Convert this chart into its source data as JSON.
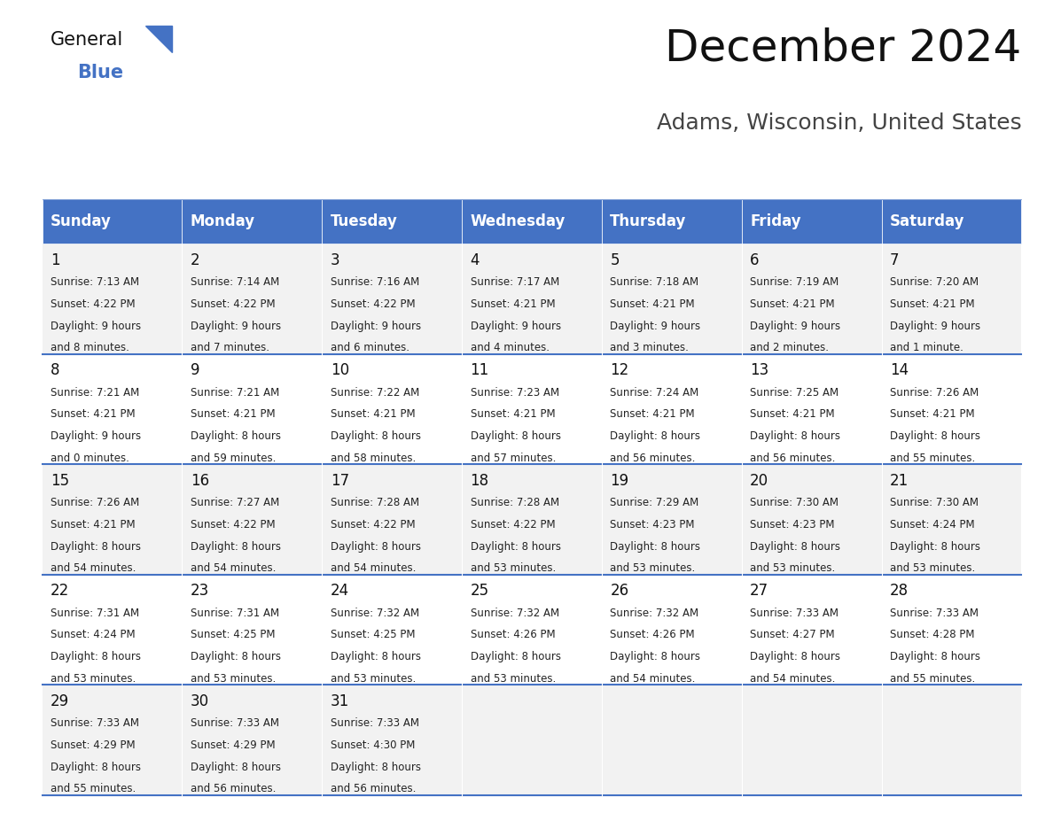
{
  "title": "December 2024",
  "subtitle": "Adams, Wisconsin, United States",
  "header_color": "#4472C4",
  "header_text_color": "#FFFFFF",
  "cell_bg_even": "#F2F2F2",
  "cell_bg_odd": "#FFFFFF",
  "days_of_week": [
    "Sunday",
    "Monday",
    "Tuesday",
    "Wednesday",
    "Thursday",
    "Friday",
    "Saturday"
  ],
  "weeks": [
    [
      {
        "day": 1,
        "sunrise": "7:13 AM",
        "sunset": "4:22 PM",
        "daylight": "9 hours and 8 minutes."
      },
      {
        "day": 2,
        "sunrise": "7:14 AM",
        "sunset": "4:22 PM",
        "daylight": "9 hours and 7 minutes."
      },
      {
        "day": 3,
        "sunrise": "7:16 AM",
        "sunset": "4:22 PM",
        "daylight": "9 hours and 6 minutes."
      },
      {
        "day": 4,
        "sunrise": "7:17 AM",
        "sunset": "4:21 PM",
        "daylight": "9 hours and 4 minutes."
      },
      {
        "day": 5,
        "sunrise": "7:18 AM",
        "sunset": "4:21 PM",
        "daylight": "9 hours and 3 minutes."
      },
      {
        "day": 6,
        "sunrise": "7:19 AM",
        "sunset": "4:21 PM",
        "daylight": "9 hours and 2 minutes."
      },
      {
        "day": 7,
        "sunrise": "7:20 AM",
        "sunset": "4:21 PM",
        "daylight": "9 hours and 1 minute."
      }
    ],
    [
      {
        "day": 8,
        "sunrise": "7:21 AM",
        "sunset": "4:21 PM",
        "daylight": "9 hours and 0 minutes."
      },
      {
        "day": 9,
        "sunrise": "7:21 AM",
        "sunset": "4:21 PM",
        "daylight": "8 hours and 59 minutes."
      },
      {
        "day": 10,
        "sunrise": "7:22 AM",
        "sunset": "4:21 PM",
        "daylight": "8 hours and 58 minutes."
      },
      {
        "day": 11,
        "sunrise": "7:23 AM",
        "sunset": "4:21 PM",
        "daylight": "8 hours and 57 minutes."
      },
      {
        "day": 12,
        "sunrise": "7:24 AM",
        "sunset": "4:21 PM",
        "daylight": "8 hours and 56 minutes."
      },
      {
        "day": 13,
        "sunrise": "7:25 AM",
        "sunset": "4:21 PM",
        "daylight": "8 hours and 56 minutes."
      },
      {
        "day": 14,
        "sunrise": "7:26 AM",
        "sunset": "4:21 PM",
        "daylight": "8 hours and 55 minutes."
      }
    ],
    [
      {
        "day": 15,
        "sunrise": "7:26 AM",
        "sunset": "4:21 PM",
        "daylight": "8 hours and 54 minutes."
      },
      {
        "day": 16,
        "sunrise": "7:27 AM",
        "sunset": "4:22 PM",
        "daylight": "8 hours and 54 minutes."
      },
      {
        "day": 17,
        "sunrise": "7:28 AM",
        "sunset": "4:22 PM",
        "daylight": "8 hours and 54 minutes."
      },
      {
        "day": 18,
        "sunrise": "7:28 AM",
        "sunset": "4:22 PM",
        "daylight": "8 hours and 53 minutes."
      },
      {
        "day": 19,
        "sunrise": "7:29 AM",
        "sunset": "4:23 PM",
        "daylight": "8 hours and 53 minutes."
      },
      {
        "day": 20,
        "sunrise": "7:30 AM",
        "sunset": "4:23 PM",
        "daylight": "8 hours and 53 minutes."
      },
      {
        "day": 21,
        "sunrise": "7:30 AM",
        "sunset": "4:24 PM",
        "daylight": "8 hours and 53 minutes."
      }
    ],
    [
      {
        "day": 22,
        "sunrise": "7:31 AM",
        "sunset": "4:24 PM",
        "daylight": "8 hours and 53 minutes."
      },
      {
        "day": 23,
        "sunrise": "7:31 AM",
        "sunset": "4:25 PM",
        "daylight": "8 hours and 53 minutes."
      },
      {
        "day": 24,
        "sunrise": "7:32 AM",
        "sunset": "4:25 PM",
        "daylight": "8 hours and 53 minutes."
      },
      {
        "day": 25,
        "sunrise": "7:32 AM",
        "sunset": "4:26 PM",
        "daylight": "8 hours and 53 minutes."
      },
      {
        "day": 26,
        "sunrise": "7:32 AM",
        "sunset": "4:26 PM",
        "daylight": "8 hours and 54 minutes."
      },
      {
        "day": 27,
        "sunrise": "7:33 AM",
        "sunset": "4:27 PM",
        "daylight": "8 hours and 54 minutes."
      },
      {
        "day": 28,
        "sunrise": "7:33 AM",
        "sunset": "4:28 PM",
        "daylight": "8 hours and 55 minutes."
      }
    ],
    [
      {
        "day": 29,
        "sunrise": "7:33 AM",
        "sunset": "4:29 PM",
        "daylight": "8 hours and 55 minutes."
      },
      {
        "day": 30,
        "sunrise": "7:33 AM",
        "sunset": "4:29 PM",
        "daylight": "8 hours and 56 minutes."
      },
      {
        "day": 31,
        "sunrise": "7:33 AM",
        "sunset": "4:30 PM",
        "daylight": "8 hours and 56 minutes."
      },
      null,
      null,
      null,
      null
    ]
  ],
  "logo_text_general": "General",
  "logo_text_blue": "Blue",
  "figsize": [
    11.88,
    9.18
  ],
  "dpi": 100
}
